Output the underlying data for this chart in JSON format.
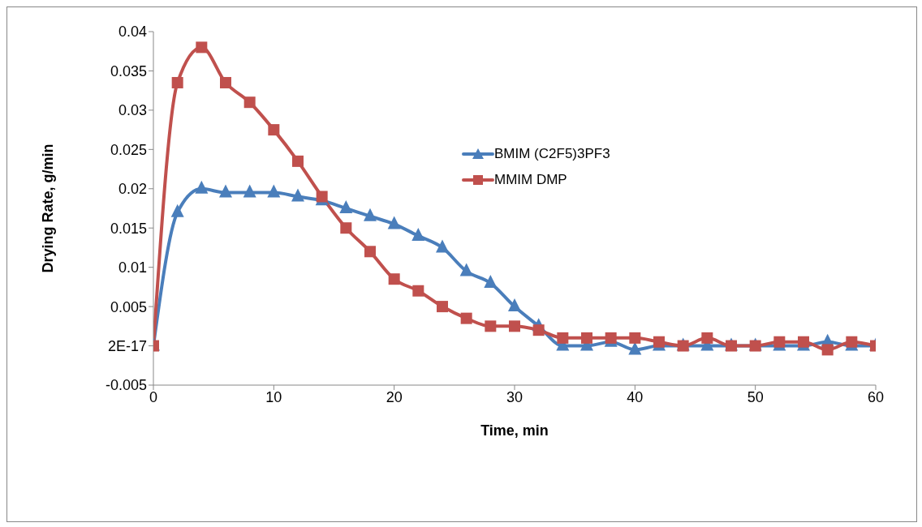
{
  "chart_data": {
    "type": "line",
    "xlabel": "Time, min",
    "ylabel": "Drying Rate, g/min",
    "x": [
      0,
      2,
      4,
      6,
      8,
      10,
      12,
      14,
      16,
      18,
      20,
      22,
      24,
      26,
      28,
      30,
      32,
      34,
      36,
      38,
      40,
      42,
      44,
      46,
      48,
      50,
      52,
      54,
      56,
      58,
      60
    ],
    "series": [
      {
        "name": "BMIM  (C2F5)3PF3",
        "color": "#4a7ebb",
        "marker": "triangle",
        "values": [
          0,
          0.017,
          0.02,
          0.0195,
          0.0195,
          0.0195,
          0.019,
          0.0185,
          0.0175,
          0.0165,
          0.0155,
          0.014,
          0.0125,
          0.0095,
          0.008,
          0.005,
          0.0025,
          0,
          0,
          0.0005,
          -0.0005,
          0,
          0,
          0,
          0,
          0,
          0,
          0,
          0.0005,
          0,
          0
        ]
      },
      {
        "name": "MMIM DMP",
        "color": "#c0504d",
        "marker": "square",
        "values": [
          0,
          0.0335,
          0.038,
          0.0335,
          0.031,
          0.0275,
          0.0235,
          0.019,
          0.015,
          0.012,
          0.0085,
          0.007,
          0.005,
          0.0035,
          0.0025,
          0.0025,
          0.002,
          0.001,
          0.001,
          0.001,
          0.001,
          0.0005,
          0,
          0.001,
          0,
          0,
          0.0005,
          0.0005,
          -0.0005,
          0.0005,
          0
        ]
      }
    ],
    "xlim": [
      0,
      60
    ],
    "xticks": [
      0,
      10,
      20,
      30,
      40,
      50,
      60
    ],
    "ylim": [
      -0.005,
      0.04
    ],
    "yticks": [
      -0.005,
      {
        "value": 0,
        "label": "2E-17"
      },
      0.005,
      0.01,
      0.015,
      0.02,
      0.025,
      0.03,
      0.035,
      0.04
    ],
    "grid": false,
    "legend": "right"
  }
}
